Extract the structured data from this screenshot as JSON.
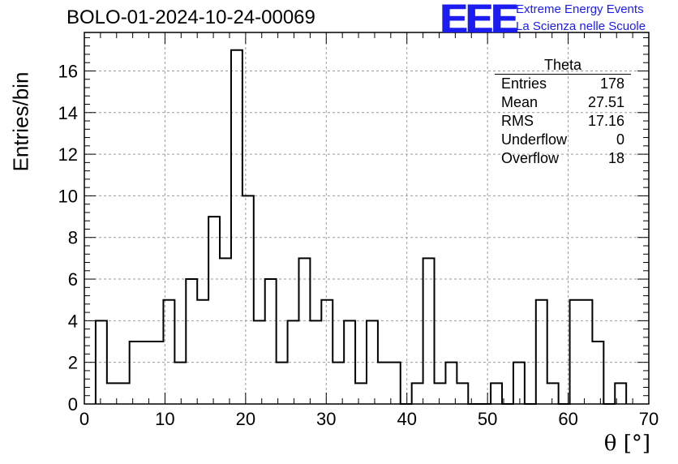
{
  "header": {
    "run_title": "BOLO-01-2024-10-24-00069",
    "logo_text": "EEE",
    "logo_line1": "Extreme Energy Events",
    "logo_line2": "La Scienza nelle Scuole"
  },
  "colors": {
    "brand": "#1c1cf0",
    "line": "#000000",
    "grid": "#9a9a9a"
  },
  "stats_box": {
    "name": "Theta",
    "rows": [
      {
        "label": "Entries",
        "value": "178"
      },
      {
        "label": "Mean",
        "value": "27.51"
      },
      {
        "label": "RMS",
        "value": "17.16"
      },
      {
        "label": "Underflow",
        "value": "0"
      },
      {
        "label": "Overflow",
        "value": "18"
      }
    ]
  },
  "chart_data": {
    "type": "bar",
    "style": "step-histogram",
    "title": "BOLO-01-2024-10-24-00069",
    "xlabel": "θ [°]",
    "ylabel": "Entries/bin",
    "xlim": [
      0,
      70
    ],
    "ylim": [
      0,
      17.85
    ],
    "bin_width": 1.4,
    "bin_edges_start": 1.4,
    "values": [
      4,
      1,
      1,
      3,
      3,
      3,
      5,
      2,
      6,
      5,
      9,
      7,
      17,
      10,
      4,
      6,
      2,
      4,
      7,
      4,
      5,
      2,
      4,
      1,
      4,
      2,
      2,
      0,
      1,
      7,
      1,
      2,
      1,
      0,
      0,
      1,
      0,
      2,
      0,
      5,
      1,
      0,
      5,
      5,
      3,
      0,
      1
    ],
    "x_ticks": [
      0,
      10,
      20,
      30,
      40,
      50,
      60,
      70
    ],
    "y_ticks": [
      0,
      2,
      4,
      6,
      8,
      10,
      12,
      14,
      16
    ],
    "grid": true
  }
}
